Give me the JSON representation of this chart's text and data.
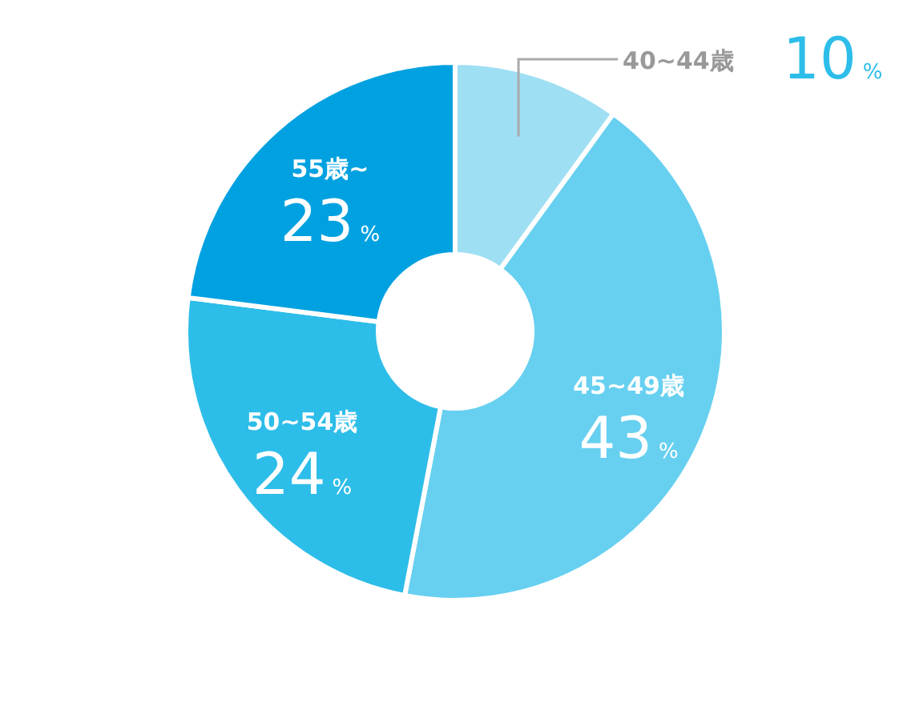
{
  "chart_data": {
    "type": "donut",
    "categories": [
      "40~44歳",
      "45~49歳",
      "50~54歳",
      "55歳~"
    ],
    "values": [
      10,
      43,
      24,
      23
    ],
    "colors": [
      "#9fdff3",
      "#67d0f0",
      "#2dbde9",
      "#00a1e0"
    ],
    "value_labels": [
      "10%",
      "43%",
      "24%",
      "23%"
    ]
  }
}
